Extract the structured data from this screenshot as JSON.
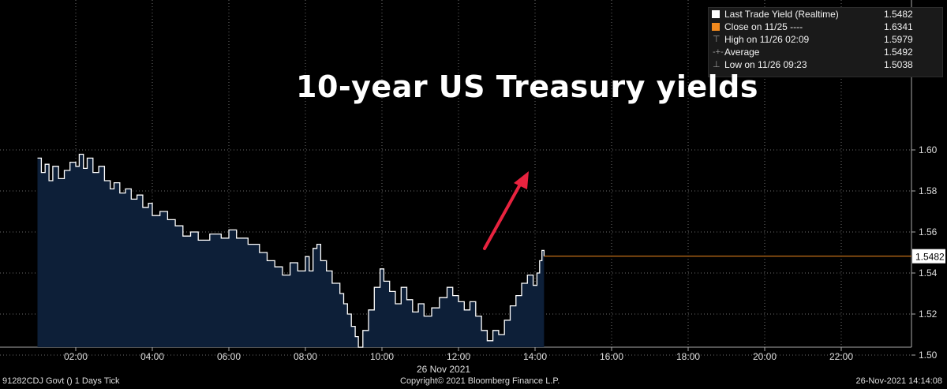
{
  "headline": "10-year US Treasury yields",
  "legend": [
    {
      "label": "Last Trade Yield (Realtime)",
      "value": "1.5482",
      "marker": "white-square"
    },
    {
      "label": "Close on 11/25  ----",
      "value": "1.6341",
      "marker": "orange-square"
    },
    {
      "label": "High on 11/26 02:09",
      "value": "1.5979",
      "marker": "high-marker-icon"
    },
    {
      "label": "Average",
      "value": "1.5492",
      "marker": "average-marker-icon"
    },
    {
      "label": "Low on 11/26 09:23",
      "value": "1.5038",
      "marker": "low-marker-icon"
    }
  ],
  "footer": {
    "left": "91282CDJ Govt () 1 Days  Tick",
    "center": "Copyright© 2021 Bloomberg Finance L.P.",
    "right": "26-Nov-2021 14:14:08"
  },
  "colors": {
    "background": "#000000",
    "area_fill": "#0d1f38",
    "line": "#ffffff",
    "last_price_line": "#f28a1e",
    "arrow": "#e8233f",
    "grid": "#6b6b6b"
  },
  "chart_data": {
    "type": "area",
    "date_label": "26 Nov 2021",
    "x_ticks": [
      "02:00",
      "04:00",
      "06:00",
      "08:00",
      "10:00",
      "12:00",
      "14:00",
      "16:00",
      "18:00",
      "20:00",
      "22:00"
    ],
    "y_ticks": [
      "1.50",
      "1.52",
      "1.54",
      "1.56",
      "1.58",
      "1.60"
    ],
    "ylim": [
      1.496,
      1.606
    ],
    "xlim_hours": [
      0.9,
      24.0
    ],
    "grid": true,
    "last_value_label": "1.5482",
    "last_value": 1.5482,
    "series": [
      {
        "values": [
          [
            1.0,
            1.596
          ],
          [
            1.1,
            1.589
          ],
          [
            1.2,
            1.593
          ],
          [
            1.3,
            1.585
          ],
          [
            1.4,
            1.592
          ],
          [
            1.55,
            1.586
          ],
          [
            1.7,
            1.59
          ],
          [
            1.85,
            1.594
          ],
          [
            2.0,
            1.592
          ],
          [
            2.09,
            1.5979
          ],
          [
            2.2,
            1.591
          ],
          [
            2.3,
            1.596
          ],
          [
            2.45,
            1.589
          ],
          [
            2.6,
            1.592
          ],
          [
            2.75,
            1.585
          ],
          [
            2.9,
            1.581
          ],
          [
            3.0,
            1.584
          ],
          [
            3.15,
            1.579
          ],
          [
            3.3,
            1.581
          ],
          [
            3.45,
            1.576
          ],
          [
            3.6,
            1.578
          ],
          [
            3.75,
            1.572
          ],
          [
            3.9,
            1.574
          ],
          [
            4.0,
            1.568
          ],
          [
            4.2,
            1.57
          ],
          [
            4.4,
            1.566
          ],
          [
            4.6,
            1.563
          ],
          [
            4.8,
            1.558
          ],
          [
            5.0,
            1.56
          ],
          [
            5.2,
            1.556
          ],
          [
            5.5,
            1.559
          ],
          [
            5.8,
            1.557
          ],
          [
            6.0,
            1.561
          ],
          [
            6.2,
            1.557
          ],
          [
            6.5,
            1.554
          ],
          [
            6.8,
            1.55
          ],
          [
            7.0,
            1.546
          ],
          [
            7.2,
            1.543
          ],
          [
            7.4,
            1.539
          ],
          [
            7.6,
            1.545
          ],
          [
            7.8,
            1.541
          ],
          [
            8.0,
            1.548
          ],
          [
            8.1,
            1.541
          ],
          [
            8.2,
            1.552
          ],
          [
            8.3,
            1.554
          ],
          [
            8.4,
            1.546
          ],
          [
            8.55,
            1.541
          ],
          [
            8.7,
            1.535
          ],
          [
            8.9,
            1.53
          ],
          [
            9.0,
            1.525
          ],
          [
            9.1,
            1.52
          ],
          [
            9.2,
            1.514
          ],
          [
            9.3,
            1.509
          ],
          [
            9.383,
            1.5038
          ],
          [
            9.5,
            1.512
          ],
          [
            9.65,
            1.522
          ],
          [
            9.8,
            1.533
          ],
          [
            9.95,
            1.542
          ],
          [
            10.05,
            1.536
          ],
          [
            10.2,
            1.531
          ],
          [
            10.35,
            1.525
          ],
          [
            10.5,
            1.533
          ],
          [
            10.65,
            1.527
          ],
          [
            10.8,
            1.521
          ],
          [
            10.95,
            1.525
          ],
          [
            11.1,
            1.519
          ],
          [
            11.3,
            1.523
          ],
          [
            11.5,
            1.528
          ],
          [
            11.7,
            1.533
          ],
          [
            11.85,
            1.529
          ],
          [
            12.0,
            1.526
          ],
          [
            12.15,
            1.522
          ],
          [
            12.3,
            1.526
          ],
          [
            12.45,
            1.519
          ],
          [
            12.6,
            1.512
          ],
          [
            12.75,
            1.507
          ],
          [
            12.9,
            1.512
          ],
          [
            13.05,
            1.51
          ],
          [
            13.2,
            1.517
          ],
          [
            13.35,
            1.524
          ],
          [
            13.5,
            1.529
          ],
          [
            13.65,
            1.535
          ],
          [
            13.8,
            1.539
          ],
          [
            13.95,
            1.534
          ],
          [
            14.05,
            1.54
          ],
          [
            14.12,
            1.546
          ],
          [
            14.18,
            1.551
          ],
          [
            14.235,
            1.5482
          ]
        ]
      }
    ]
  }
}
